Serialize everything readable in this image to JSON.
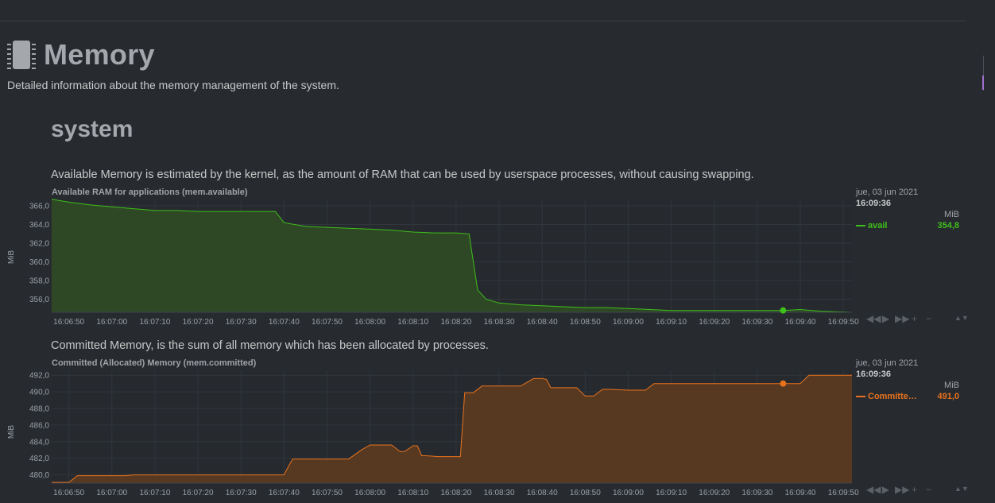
{
  "section": {
    "title": "Memory",
    "icon": "memory-chip-icon",
    "description": "Detailed information about the memory management of the system.",
    "subsection": "system"
  },
  "charts": [
    {
      "description": "Available Memory is estimated by the kernel, as the amount of RAM that can be used by userspace processes, without causing swapping.",
      "legend": {
        "date": "jue, 03 jun 2021",
        "time": "16:09:36",
        "units": "MiB",
        "dimension": "avail",
        "value": "354,8"
      }
    },
    {
      "description": "Committed Memory, is the sum of all memory which has been allocated by processes.",
      "legend": {
        "date": "jue, 03 jun 2021",
        "time": "16:09:36",
        "units": "MiB",
        "dimension": "Committe…",
        "value": "491,0"
      }
    }
  ],
  "toolbar": {
    "icons": [
      "rewind-icon",
      "play-icon",
      "fast-forward-icon",
      "zoom-in-icon",
      "zoom-out-icon"
    ],
    "glyphs": [
      "◀◀",
      "▶",
      "▶▶",
      "+",
      "−"
    ],
    "resize_glyph": "▲▼"
  },
  "chart_data": [
    {
      "type": "area",
      "title": "Available RAM for applications (mem.available)",
      "ylabel": "MiB",
      "ylim": [
        354.6,
        366.6
      ],
      "yticks": [
        356,
        358,
        360,
        362,
        364,
        366
      ],
      "ytick_labels": [
        "356,0",
        "358,0",
        "360,0",
        "362,0",
        "364,0",
        "366,0"
      ],
      "xticks": [
        "16:06:50",
        "16:07:00",
        "16:07:10",
        "16:07:20",
        "16:07:30",
        "16:07:40",
        "16:07:50",
        "16:08:00",
        "16:08:10",
        "16:08:20",
        "16:08:30",
        "16:08:40",
        "16:08:50",
        "16:09:00",
        "16:09:10",
        "16:09:20",
        "16:09:30",
        "16:09:40",
        "16:09:50"
      ],
      "x_start": "16:06:46",
      "x_end": "16:09:52",
      "color": "#3fbf1a",
      "fill": "#2e4a25",
      "highlight": {
        "x": "16:09:36",
        "y": 354.8
      },
      "series": [
        {
          "name": "avail",
          "x": [
            "16:06:46",
            "16:06:50",
            "16:06:55",
            "16:07:00",
            "16:07:05",
            "16:07:10",
            "16:07:15",
            "16:07:20",
            "16:07:25",
            "16:07:30",
            "16:07:35",
            "16:07:38",
            "16:07:40",
            "16:07:45",
            "16:07:50",
            "16:07:55",
            "16:08:00",
            "16:08:05",
            "16:08:10",
            "16:08:15",
            "16:08:20",
            "16:08:23",
            "16:08:25",
            "16:08:27",
            "16:08:30",
            "16:08:35",
            "16:08:40",
            "16:08:45",
            "16:08:50",
            "16:08:55",
            "16:09:00",
            "16:09:05",
            "16:09:10",
            "16:09:15",
            "16:09:20",
            "16:09:25",
            "16:09:30",
            "16:09:36",
            "16:09:40",
            "16:09:45",
            "16:09:52"
          ],
          "values": [
            366.7,
            366.4,
            366.1,
            365.9,
            365.7,
            365.5,
            365.5,
            365.4,
            365.4,
            365.4,
            365.4,
            365.4,
            364.2,
            363.8,
            363.7,
            363.6,
            363.5,
            363.4,
            363.2,
            363.1,
            363.1,
            363.0,
            357.0,
            356.0,
            355.6,
            355.4,
            355.3,
            355.2,
            355.1,
            355.1,
            355.0,
            354.9,
            354.8,
            354.8,
            354.8,
            354.8,
            354.8,
            354.8,
            354.9,
            354.7,
            354.6
          ]
        }
      ]
    },
    {
      "type": "area",
      "title": "Committed (Allocated) Memory (mem.committed)",
      "ylabel": "MiB",
      "ylim": [
        479.0,
        492.5
      ],
      "yticks": [
        480,
        482,
        484,
        486,
        488,
        490,
        492
      ],
      "ytick_labels": [
        "480,0",
        "482,0",
        "484,0",
        "486,0",
        "488,0",
        "490,0",
        "492,0"
      ],
      "xticks": [
        "16:06:50",
        "16:07:00",
        "16:07:10",
        "16:07:20",
        "16:07:30",
        "16:07:40",
        "16:07:50",
        "16:08:00",
        "16:08:10",
        "16:08:20",
        "16:08:30",
        "16:08:40",
        "16:08:50",
        "16:09:00",
        "16:09:10",
        "16:09:20",
        "16:09:30",
        "16:09:40",
        "16:09:50"
      ],
      "x_start": "16:06:46",
      "x_end": "16:09:52",
      "color": "#e8721c",
      "fill": "#5a3a22",
      "highlight": {
        "x": "16:09:36",
        "y": 491.0
      },
      "series": [
        {
          "name": "Committe…",
          "x": [
            "16:06:46",
            "16:06:50",
            "16:06:51",
            "16:06:52",
            "16:07:00",
            "16:07:03",
            "16:07:05",
            "16:07:10",
            "16:07:20",
            "16:07:30",
            "16:07:40",
            "16:07:41",
            "16:07:42",
            "16:07:50",
            "16:07:55",
            "16:07:58",
            "16:08:00",
            "16:08:05",
            "16:08:06",
            "16:08:07",
            "16:08:08",
            "16:08:10",
            "16:08:11",
            "16:08:12",
            "16:08:13",
            "16:08:16",
            "16:08:21",
            "16:08:22",
            "16:08:24",
            "16:08:26",
            "16:08:28",
            "16:08:35",
            "16:08:38",
            "16:08:40",
            "16:08:41",
            "16:08:42",
            "16:08:44",
            "16:08:48",
            "16:08:50",
            "16:08:52",
            "16:08:54",
            "16:08:56",
            "16:09:00",
            "16:09:04",
            "16:09:06",
            "16:09:10",
            "16:09:20",
            "16:09:36",
            "16:09:40",
            "16:09:42",
            "16:09:52"
          ],
          "values": [
            479.1,
            479.1,
            479.5,
            479.9,
            479.9,
            479.9,
            480.0,
            480.0,
            480.0,
            480.0,
            480.0,
            481.0,
            481.9,
            481.9,
            481.9,
            483.0,
            483.6,
            483.6,
            483.2,
            482.8,
            482.8,
            483.5,
            483.5,
            482.3,
            482.3,
            482.2,
            482.2,
            489.9,
            489.9,
            490.7,
            490.7,
            490.7,
            491.6,
            491.6,
            491.5,
            490.5,
            490.5,
            490.5,
            489.5,
            489.5,
            490.3,
            490.3,
            490.2,
            490.2,
            491.0,
            491.0,
            491.0,
            491.0,
            491.0,
            492.0,
            492.0
          ]
        }
      ]
    }
  ]
}
